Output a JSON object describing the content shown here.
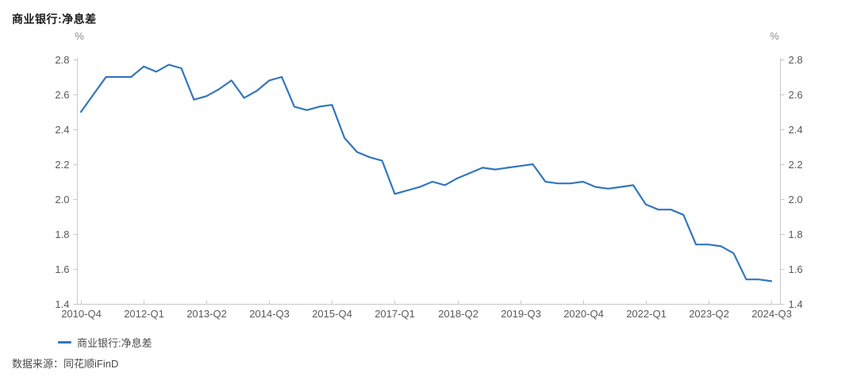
{
  "page": {
    "background": "#ffffff"
  },
  "header": {
    "title": "商业银行:净息差"
  },
  "axes": {
    "left_unit": "%",
    "right_unit": "%"
  },
  "legend": {
    "label": "商业银行:净息差"
  },
  "source": {
    "text": "数据来源：同花顺iFinD"
  },
  "colors": {
    "line": "#3376BD",
    "axis": "#c8c8c8",
    "tick_text": "#595959",
    "unit_text": "#8c8c8c",
    "title_text": "#1b1b1b",
    "caption_text": "#4a4a4a"
  },
  "chart_data": {
    "type": "line",
    "title": "商业银行:净息差",
    "ylabel": "%",
    "ylim": [
      1.4,
      2.8
    ],
    "y_ticks": [
      2.8,
      2.6,
      2.4,
      2.2,
      2.0,
      1.8,
      1.6,
      1.4
    ],
    "grid": false,
    "legend_position": "bottom-left",
    "legend_entries": [
      "商业银行:净息差"
    ],
    "x_tick_labels": [
      "2010-Q4",
      "2012-Q1",
      "2013-Q2",
      "2014-Q3",
      "2015-Q4",
      "2017-Q1",
      "2018-Q2",
      "2019-Q3",
      "2020-Q4",
      "2022-Q1",
      "2023-Q2",
      "2024-Q3"
    ],
    "x": [
      "2010-Q4",
      "2011-Q1",
      "2011-Q2",
      "2011-Q3",
      "2011-Q4",
      "2012-Q1",
      "2012-Q2",
      "2012-Q3",
      "2012-Q4",
      "2013-Q1",
      "2013-Q2",
      "2013-Q3",
      "2013-Q4",
      "2014-Q1",
      "2014-Q2",
      "2014-Q3",
      "2014-Q4",
      "2015-Q1",
      "2015-Q2",
      "2015-Q3",
      "2015-Q4",
      "2016-Q1",
      "2016-Q2",
      "2016-Q3",
      "2016-Q4",
      "2017-Q1",
      "2017-Q2",
      "2017-Q3",
      "2017-Q4",
      "2018-Q1",
      "2018-Q2",
      "2018-Q3",
      "2018-Q4",
      "2019-Q1",
      "2019-Q2",
      "2019-Q3",
      "2019-Q4",
      "2020-Q1",
      "2020-Q2",
      "2020-Q3",
      "2020-Q4",
      "2021-Q1",
      "2021-Q2",
      "2021-Q3",
      "2021-Q4",
      "2022-Q1",
      "2022-Q2",
      "2022-Q3",
      "2022-Q4",
      "2023-Q1",
      "2023-Q2",
      "2023-Q3",
      "2023-Q4",
      "2024-Q1",
      "2024-Q2",
      "2024-Q3"
    ],
    "series": [
      {
        "name": "商业银行:净息差",
        "values": [
          2.5,
          2.6,
          2.7,
          2.7,
          2.7,
          2.76,
          2.73,
          2.77,
          2.75,
          2.57,
          2.59,
          2.63,
          2.68,
          2.58,
          2.62,
          2.68,
          2.7,
          2.53,
          2.51,
          2.53,
          2.54,
          2.35,
          2.27,
          2.24,
          2.22,
          2.03,
          2.05,
          2.07,
          2.1,
          2.08,
          2.12,
          2.15,
          2.18,
          2.17,
          2.18,
          2.19,
          2.2,
          2.1,
          2.09,
          2.09,
          2.1,
          2.07,
          2.06,
          2.07,
          2.08,
          1.97,
          1.94,
          1.94,
          1.91,
          1.74,
          1.74,
          1.73,
          1.69,
          1.54,
          1.54,
          1.53
        ]
      }
    ]
  }
}
